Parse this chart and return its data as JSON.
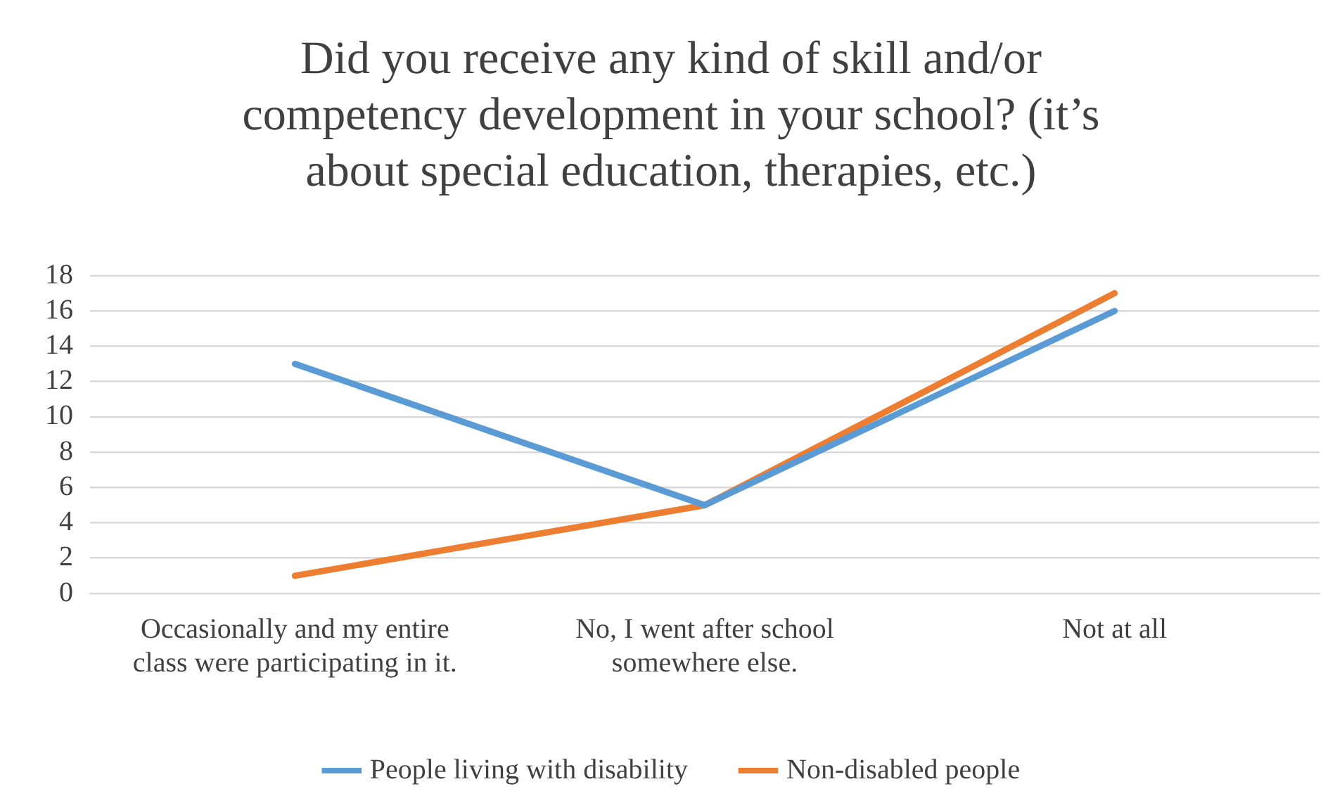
{
  "chart_data": {
    "type": "line",
    "title": "Did you receive any kind of skill and/or competency development in your school? (it’s about special education, therapies, etc.)",
    "categories": [
      "Occasionally and my entire class were participating in it.",
      "No, I went after school somewhere else.",
      "Not at all"
    ],
    "series": [
      {
        "name": "People living with disability",
        "color": "#5b9bd5",
        "values": [
          13,
          5,
          16
        ]
      },
      {
        "name": "Non-disabled people",
        "color": "#ed7d31",
        "values": [
          1,
          5,
          17
        ]
      }
    ],
    "ylim": [
      0,
      18
    ],
    "yticks": [
      0,
      2,
      4,
      6,
      8,
      10,
      12,
      14,
      16,
      18
    ],
    "grid": "y",
    "legend": "bottom",
    "marker": "none",
    "line_style": "solid"
  }
}
